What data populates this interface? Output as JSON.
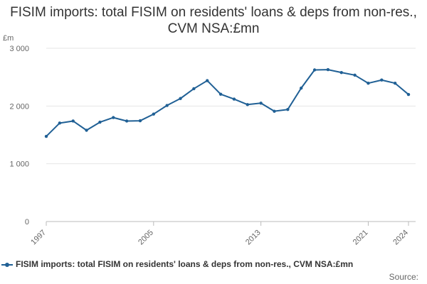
{
  "chart_data": {
    "type": "line",
    "title": "FISIM imports: total FISIM on residents' loans & deps from non-res., CVM NSA:£mn",
    "ylabel": "£m",
    "xlabel": "",
    "x": [
      1997,
      1998,
      1999,
      2000,
      2001,
      2002,
      2003,
      2004,
      2005,
      2006,
      2007,
      2008,
      2009,
      2010,
      2011,
      2012,
      2013,
      2014,
      2015,
      2016,
      2017,
      2018,
      2019,
      2020,
      2021,
      2022,
      2023,
      2024
    ],
    "x_tick_labels": [
      "1997",
      "2005",
      "2013",
      "2021",
      "2024"
    ],
    "x_ticks": [
      1997,
      2005,
      2013,
      2021,
      2024
    ],
    "ylim": [
      0,
      3000
    ],
    "y_ticks": [
      0,
      1000,
      2000,
      3000
    ],
    "y_tick_labels": [
      "0",
      "1 000",
      "2 000",
      "3 000"
    ],
    "grid": true,
    "legend_position": "bottom",
    "series": [
      {
        "name": "FISIM imports: total FISIM on residents' loans & deps from non-res., CVM NSA:£mn",
        "color": "#206095",
        "values": [
          1475,
          1705,
          1740,
          1580,
          1720,
          1800,
          1740,
          1745,
          1860,
          2010,
          2130,
          2300,
          2440,
          2205,
          2120,
          2025,
          2050,
          1910,
          1940,
          2310,
          2625,
          2630,
          2580,
          2535,
          2395,
          2450,
          2395,
          2200
        ]
      }
    ]
  },
  "footer": {
    "source_label": "Source:"
  }
}
